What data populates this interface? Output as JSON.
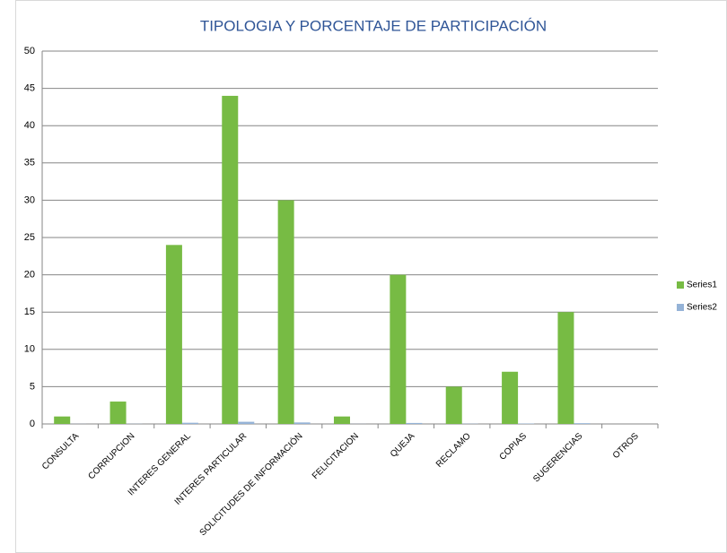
{
  "chart_data": {
    "type": "bar",
    "title": "TIPOLOGIA Y PORCENTAJE DE PARTICIPACIÓN",
    "categories": [
      "CONSULTA",
      "CORRUPCION",
      "INTERES GENERAL",
      "INTERES PARTICULAR",
      "SOLICITUDES DE INFORMACIÓN",
      "FELICITACION",
      "QUEJA",
      "RECLAMO",
      "COPIAS",
      "SUGERENCIAS",
      "OTROS"
    ],
    "series": [
      {
        "name": "Series1",
        "color": "#77bb44",
        "values": [
          1,
          3,
          24,
          44,
          30,
          1,
          20,
          5,
          7,
          15,
          0
        ]
      },
      {
        "name": "Series2",
        "color": "#95b3d7",
        "values": [
          0.01,
          0.02,
          0.16,
          0.29,
          0.2,
          0.01,
          0.13,
          0.03,
          0.05,
          0.1,
          0
        ]
      }
    ],
    "ylim": [
      0,
      50
    ],
    "yticks": [
      0,
      5,
      10,
      15,
      20,
      25,
      30,
      35,
      40,
      45,
      50
    ],
    "grid": true,
    "legend": "right"
  }
}
